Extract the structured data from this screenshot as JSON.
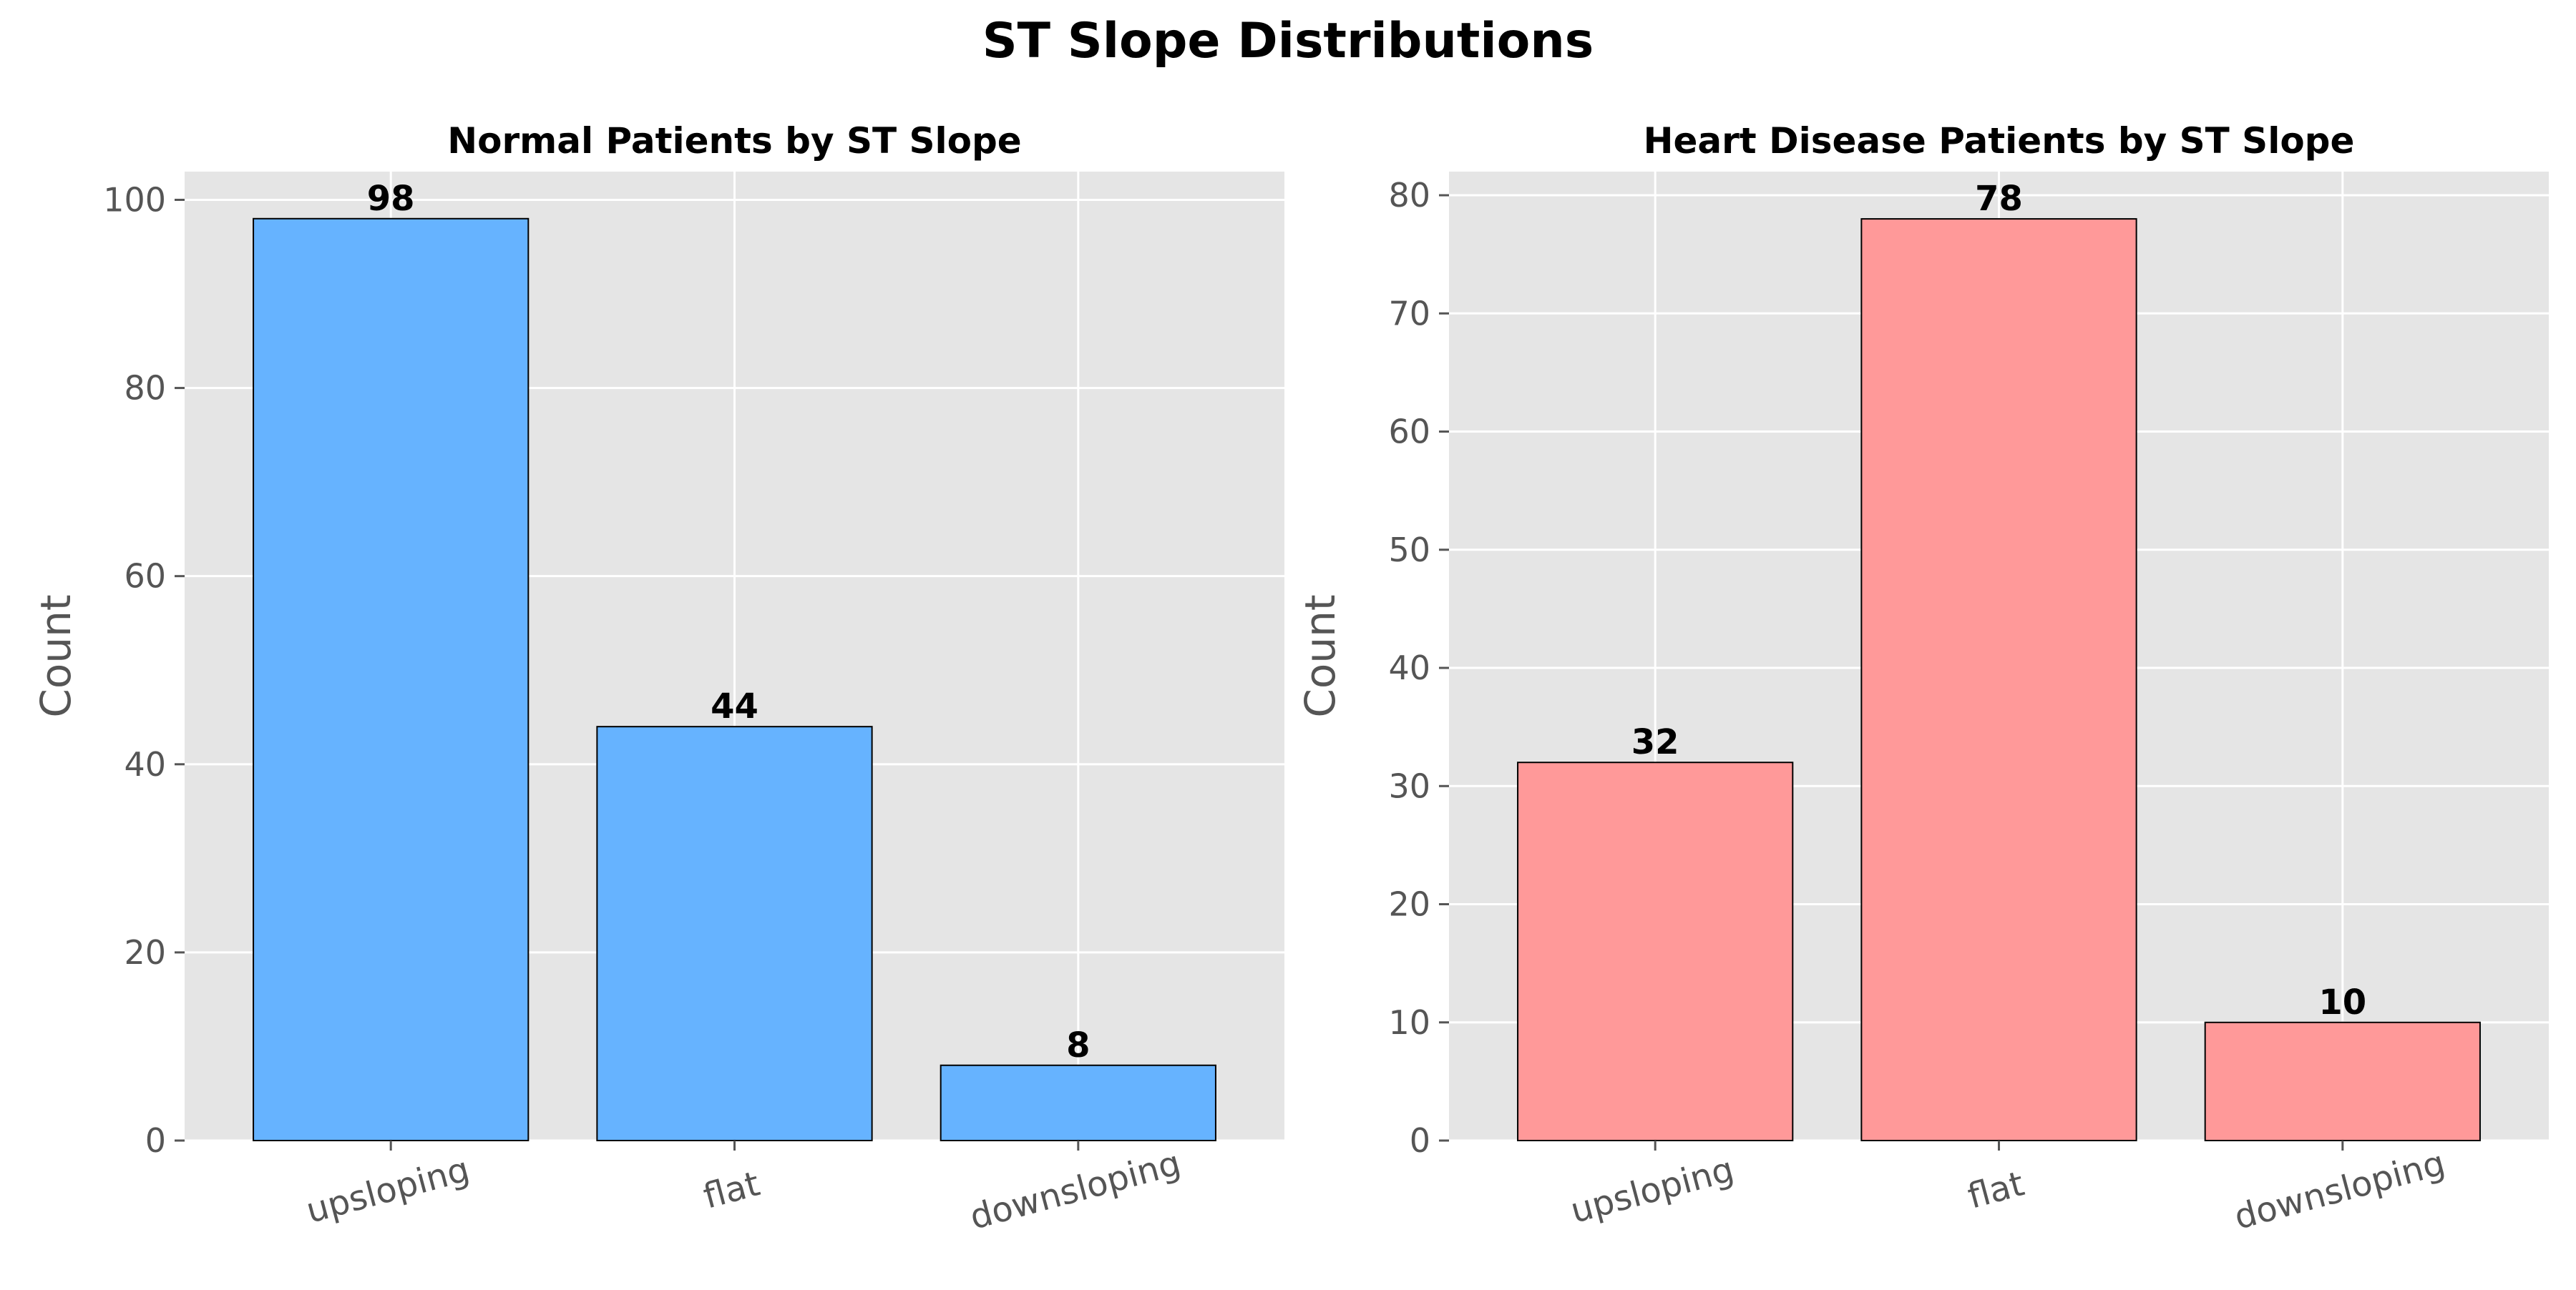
{
  "figure": {
    "suptitle": "ST Slope Distributions"
  },
  "chart_data": [
    {
      "type": "bar",
      "title": "Normal Patients by ST Slope",
      "xlabel": "",
      "ylabel": "Count",
      "categories": [
        "upsloping",
        "flat",
        "downsloping"
      ],
      "values": [
        98,
        44,
        8
      ],
      "ylim": [
        0,
        103
      ],
      "yticks": [
        0,
        20,
        40,
        60,
        80,
        100
      ],
      "grid": true,
      "bar_color": "#66b3ff",
      "edge_color": "#000000",
      "background": "#e5e5e5"
    },
    {
      "type": "bar",
      "title": "Heart Disease Patients by ST Slope",
      "xlabel": "",
      "ylabel": "Count",
      "categories": [
        "upsloping",
        "flat",
        "downsloping"
      ],
      "values": [
        32,
        78,
        10
      ],
      "ylim": [
        0,
        82
      ],
      "yticks": [
        0,
        10,
        20,
        30,
        40,
        50,
        60,
        70,
        80
      ],
      "grid": true,
      "bar_color": "#ff9999",
      "edge_color": "#000000",
      "background": "#e5e5e5"
    }
  ]
}
